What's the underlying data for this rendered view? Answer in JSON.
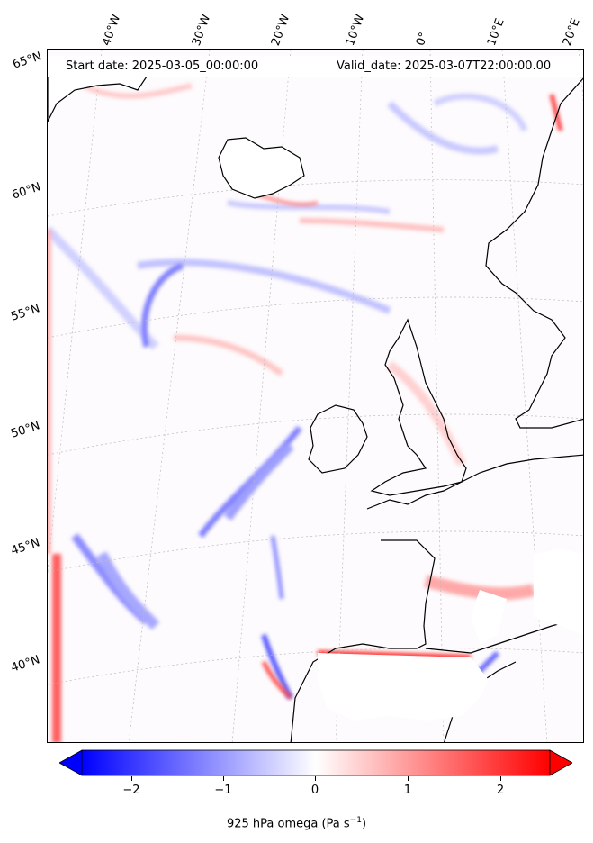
{
  "header": {
    "start_date": "Start date: 2025-03-05_00:00:00",
    "valid_date": "Valid_date: 2025-03-07T22:00:00.00"
  },
  "longitude_labels": [
    "40°W",
    "30°W",
    "20°W",
    "10°W",
    "0°",
    "10°E",
    "20°E"
  ],
  "latitude_labels": [
    "65°N",
    "60°N",
    "55°N",
    "50°N",
    "45°N",
    "40°N"
  ],
  "colorbar": {
    "ticks": [
      "−2",
      "−1",
      "0",
      "1",
      "2"
    ],
    "label_main": "925 hPa omega (Pa s",
    "label_sup": "−1",
    "label_end": ")",
    "vmin": -2.6,
    "vmax": 2.6,
    "colors": {
      "negative": "#0000ff",
      "neutral": "#ffffff",
      "positive": "#ff0000"
    }
  },
  "map": {
    "projection": "conic",
    "coastline_color": "#000000",
    "gridline_style": "dotted grey"
  }
}
